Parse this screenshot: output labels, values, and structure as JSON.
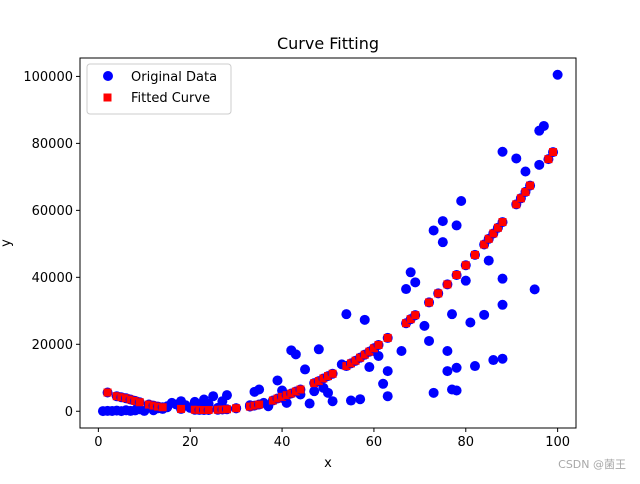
{
  "chart_data": {
    "type": "scatter",
    "title": "Curve Fitting",
    "xlabel": "x",
    "ylabel": "y",
    "xlim": [
      -4,
      104
    ],
    "ylim": [
      -5000,
      105500
    ],
    "xticks": [
      0,
      20,
      40,
      60,
      80,
      100
    ],
    "yticks": [
      0,
      20000,
      40000,
      60000,
      80000,
      100000
    ],
    "ytick_labels": [
      "0",
      "20000",
      "40000",
      "60000",
      "80000",
      "100000"
    ],
    "xtick_labels": [
      "0",
      "20",
      "40",
      "60",
      "80",
      "100"
    ],
    "legend_position": "top-left",
    "series": [
      {
        "name": "Original Data",
        "marker": "circle",
        "color": "#0000ff",
        "points": [
          [
            1,
            50
          ],
          [
            2,
            120
          ],
          [
            3,
            80
          ],
          [
            4,
            200
          ],
          [
            5,
            50
          ],
          [
            6,
            300
          ],
          [
            7,
            100
          ],
          [
            8,
            250
          ],
          [
            9,
            600
          ],
          [
            10,
            100
          ],
          [
            11,
            1200
          ],
          [
            12,
            300
          ],
          [
            13,
            900
          ],
          [
            14,
            700
          ],
          [
            15,
            1500
          ],
          [
            16,
            2500
          ],
          [
            17,
            2000
          ],
          [
            18,
            3000
          ],
          [
            19,
            1800
          ],
          [
            20,
            1000
          ],
          [
            21,
            2800
          ],
          [
            22,
            1500
          ],
          [
            23,
            3500
          ],
          [
            24,
            2200
          ],
          [
            25,
            4500
          ],
          [
            26,
            1000
          ],
          [
            27,
            3000
          ],
          [
            28,
            4800
          ],
          [
            30,
            900
          ],
          [
            33,
            1800
          ],
          [
            34,
            5800
          ],
          [
            35,
            6500
          ],
          [
            36,
            2500
          ],
          [
            37,
            1500
          ],
          [
            39,
            9200
          ],
          [
            40,
            6200
          ],
          [
            41,
            2500
          ],
          [
            42,
            18200
          ],
          [
            43,
            17000
          ],
          [
            44,
            5000
          ],
          [
            45,
            12500
          ],
          [
            46,
            2300
          ],
          [
            47,
            6000
          ],
          [
            48,
            18500
          ],
          [
            49,
            7000
          ],
          [
            50,
            5500
          ],
          [
            51,
            3000
          ],
          [
            53,
            14000
          ],
          [
            54,
            29000
          ],
          [
            55,
            3200
          ],
          [
            57,
            3600
          ],
          [
            58,
            27300
          ],
          [
            59,
            13200
          ],
          [
            60,
            18000
          ],
          [
            61,
            16500
          ],
          [
            62,
            8200
          ],
          [
            63,
            12000
          ],
          [
            63,
            4500
          ],
          [
            66,
            18000
          ],
          [
            67,
            36500
          ],
          [
            68,
            41500
          ],
          [
            69,
            38500
          ],
          [
            71,
            25500
          ],
          [
            72,
            21000
          ],
          [
            73,
            5500
          ],
          [
            73,
            54000
          ],
          [
            75,
            56800
          ],
          [
            75,
            50500
          ],
          [
            76,
            12000
          ],
          [
            76,
            18000
          ],
          [
            77,
            6500
          ],
          [
            77,
            29000
          ],
          [
            78,
            55500
          ],
          [
            79,
            62800
          ],
          [
            80,
            39000
          ],
          [
            81,
            26500
          ],
          [
            82,
            13500
          ],
          [
            84,
            28800
          ],
          [
            86,
            15300
          ],
          [
            88,
            15700
          ],
          [
            88,
            31800
          ],
          [
            88,
            39600
          ],
          [
            88,
            77500
          ],
          [
            91,
            75500
          ],
          [
            93,
            71600
          ],
          [
            95,
            36400
          ],
          [
            96,
            73600
          ],
          [
            96,
            83800
          ],
          [
            97,
            85200
          ],
          [
            100,
            100500
          ],
          [
            78,
            6200
          ],
          [
            78,
            13000
          ],
          [
            60,
            18100
          ],
          [
            85,
            45000
          ],
          [
            40,
            4000
          ],
          [
            15,
            1200
          ],
          [
            22,
            800
          ],
          [
            27,
            1200
          ]
        ]
      },
      {
        "name": "Fitted Curve",
        "marker": "square",
        "color": "#ff0000",
        "points": [
          [
            2,
            5600
          ],
          [
            4,
            4500
          ],
          [
            5,
            4200
          ],
          [
            6,
            3900
          ],
          [
            7,
            3500
          ],
          [
            8,
            3100
          ],
          [
            9,
            2700
          ],
          [
            11,
            2000
          ],
          [
            12,
            1700
          ],
          [
            13,
            1400
          ],
          [
            14,
            1200
          ],
          [
            18,
            700
          ],
          [
            21,
            450
          ],
          [
            22,
            400
          ],
          [
            23,
            380
          ],
          [
            24,
            380
          ],
          [
            26,
            450
          ],
          [
            27,
            520
          ],
          [
            28,
            600
          ],
          [
            30,
            900
          ],
          [
            33,
            1400
          ],
          [
            34,
            1700
          ],
          [
            35,
            2000
          ],
          [
            38,
            3200
          ],
          [
            39,
            3800
          ],
          [
            40,
            4300
          ],
          [
            41,
            4800
          ],
          [
            42,
            5300
          ],
          [
            43,
            5900
          ],
          [
            44,
            6500
          ],
          [
            47,
            8400
          ],
          [
            48,
            9000
          ],
          [
            49,
            9800
          ],
          [
            50,
            10500
          ],
          [
            51,
            11200
          ],
          [
            54,
            13500
          ],
          [
            55,
            14300
          ],
          [
            56,
            15100
          ],
          [
            57,
            16000
          ],
          [
            58,
            16900
          ],
          [
            59,
            17800
          ],
          [
            60,
            18800
          ],
          [
            61,
            19800
          ],
          [
            63,
            21900
          ],
          [
            67,
            26300
          ],
          [
            68,
            27500
          ],
          [
            69,
            28700
          ],
          [
            72,
            32500
          ],
          [
            74,
            35200
          ],
          [
            76,
            37900
          ],
          [
            78,
            40700
          ],
          [
            80,
            43600
          ],
          [
            82,
            46700
          ],
          [
            84,
            49800
          ],
          [
            85,
            51500
          ],
          [
            86,
            53100
          ],
          [
            87,
            54800
          ],
          [
            88,
            56500
          ],
          [
            91,
            61800
          ],
          [
            92,
            63600
          ],
          [
            93,
            65500
          ],
          [
            94,
            67400
          ],
          [
            98,
            75300
          ],
          [
            99,
            77400
          ]
        ]
      }
    ]
  },
  "watermark": "CSDN @菌王"
}
